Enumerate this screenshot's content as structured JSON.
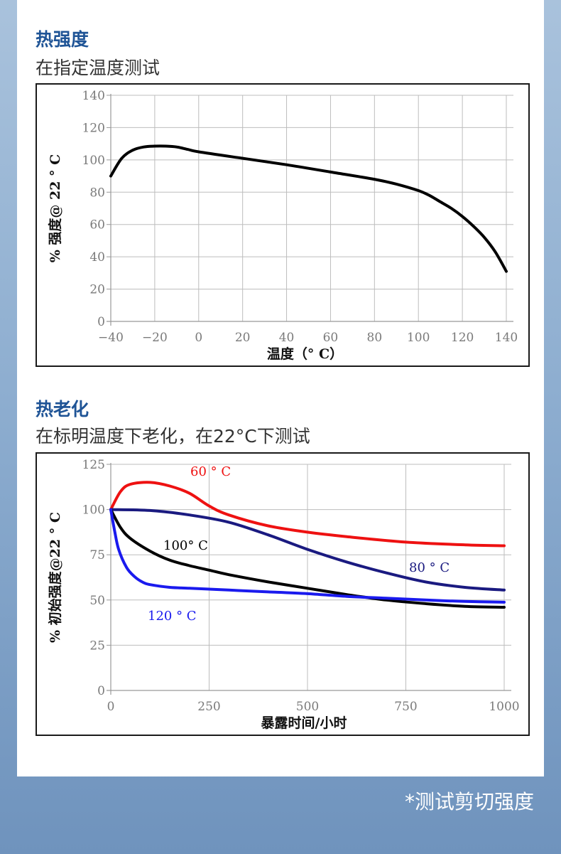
{
  "section1": {
    "title": "热强度",
    "subtitle": "在指定温度测试"
  },
  "section2": {
    "title": "热老化",
    "subtitle": "在标明温度下老化，在22°C下测试"
  },
  "footnote": "*测试剪切强度",
  "chart_data": [
    {
      "type": "line",
      "title": "",
      "xlabel": "温度（° C）",
      "ylabel": "% 强度@ 22 ° C",
      "xlim": [
        -40,
        140
      ],
      "ylim": [
        0,
        140
      ],
      "xticks": [
        -40,
        -20,
        0,
        20,
        40,
        60,
        80,
        100,
        120,
        140
      ],
      "yticks": [
        0,
        20,
        40,
        60,
        80,
        100,
        120,
        140
      ],
      "grid": true,
      "series": [
        {
          "color": "#000000",
          "x": [
            -40,
            -35,
            -30,
            -25,
            -20,
            -15,
            -10,
            -5,
            0,
            20,
            40,
            60,
            80,
            90,
            100,
            105,
            110,
            115,
            120,
            125,
            130,
            135,
            140
          ],
          "y": [
            90,
            101,
            106,
            108,
            108.5,
            108.5,
            108,
            106.5,
            105,
            101,
            97,
            92.5,
            88,
            85,
            81,
            78,
            74,
            70,
            65,
            59,
            52,
            43,
            31
          ]
        }
      ]
    },
    {
      "type": "line",
      "title": "",
      "xlabel": "暴露时间/小时",
      "ylabel": "% 初始强度@22 ° C",
      "xlim": [
        0,
        1000
      ],
      "ylim": [
        0,
        125
      ],
      "xticks": [
        0,
        250,
        500,
        750,
        1000
      ],
      "yticks": [
        0,
        25,
        50,
        75,
        100,
        125
      ],
      "grid": true,
      "series": [
        {
          "name": "60 ° C",
          "color": "#ee1111",
          "x": [
            0,
            25,
            50,
            100,
            150,
            200,
            250,
            300,
            400,
            500,
            600,
            750,
            900,
            1000
          ],
          "y": [
            100,
            110,
            114,
            115,
            113,
            109,
            102,
            97,
            91,
            87.5,
            85,
            82,
            80.5,
            80
          ]
        },
        {
          "name": "80 ° C",
          "color": "#1a1a80",
          "x": [
            0,
            100,
            200,
            300,
            400,
            500,
            600,
            700,
            800,
            900,
            1000
          ],
          "y": [
            100,
            99.5,
            97,
            93,
            86,
            78,
            71,
            65,
            60,
            57,
            55.5
          ]
        },
        {
          "name": "100° C",
          "color": "#000000",
          "x": [
            0,
            25,
            50,
            100,
            150,
            200,
            250,
            300,
            400,
            500,
            600,
            700,
            800,
            900,
            1000
          ],
          "y": [
            100,
            90,
            84,
            77,
            72,
            69,
            66.5,
            64,
            60,
            56.5,
            53,
            50,
            48,
            46.5,
            46
          ]
        },
        {
          "name": "120 ° C",
          "color": "#1a1aee",
          "x": [
            0,
            10,
            20,
            40,
            60,
            80,
            100,
            150,
            200,
            250,
            300,
            350,
            400,
            500,
            600,
            700,
            800,
            900,
            1000
          ],
          "y": [
            100,
            88,
            78,
            68,
            63,
            60,
            58.5,
            57,
            56.5,
            56,
            55.5,
            55,
            54.5,
            53.5,
            52,
            51,
            50,
            49.2,
            48.8
          ]
        }
      ]
    }
  ]
}
